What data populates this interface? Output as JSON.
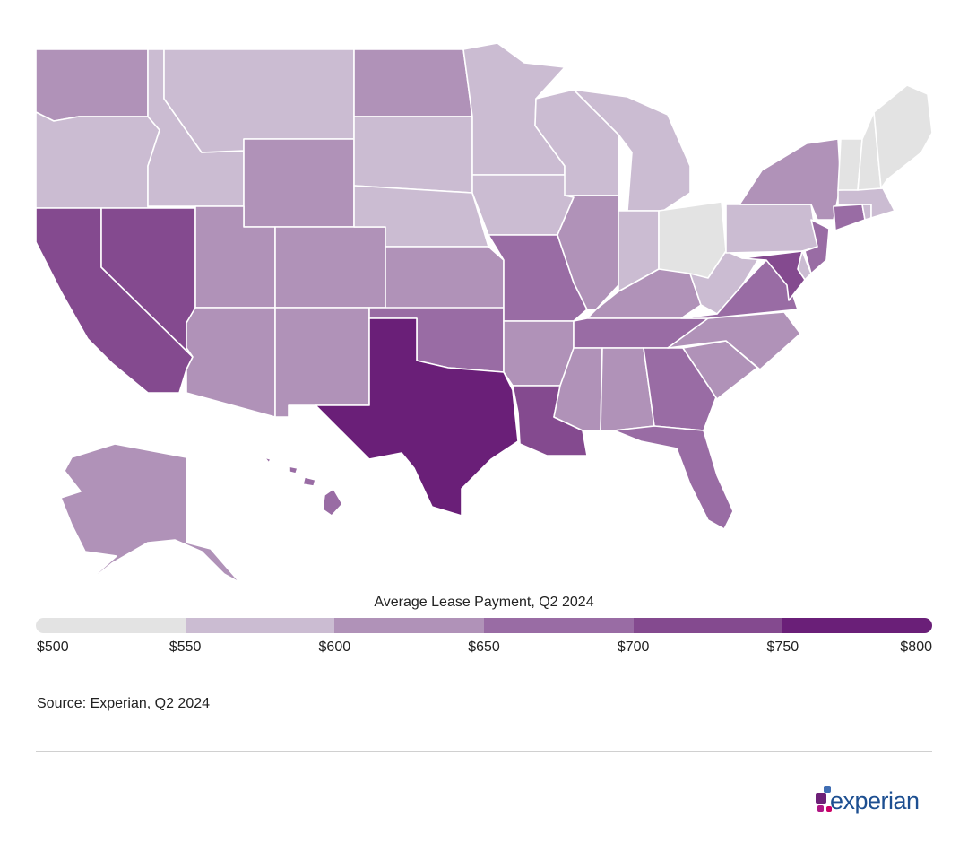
{
  "legend": {
    "title": "Average Lease Payment, Q2 2024",
    "ticks": [
      "$500",
      "$550",
      "$600",
      "$650",
      "$700",
      "$750",
      "$800"
    ],
    "bins": [
      {
        "min": 500,
        "max": 550,
        "color": "#e3e3e3"
      },
      {
        "min": 550,
        "max": 600,
        "color": "#cbbcd2"
      },
      {
        "min": 600,
        "max": 650,
        "color": "#b092b8"
      },
      {
        "min": 650,
        "max": 700,
        "color": "#996ca4"
      },
      {
        "min": 700,
        "max": 750,
        "color": "#844a8f"
      },
      {
        "min": 750,
        "max": 800,
        "color": "#6a1f78"
      }
    ]
  },
  "source": "Source: Experian, Q2 2024",
  "brand": {
    "name": "experian",
    "suffix": "."
  },
  "states": {
    "WA": 2,
    "OR": 1,
    "CA": 4,
    "NV": 4,
    "ID": 1,
    "MT": 1,
    "WY": 2,
    "UT": 2,
    "AZ": 2,
    "CO": 2,
    "NM": 2,
    "ND": 2,
    "SD": 1,
    "NE": 1,
    "KS": 2,
    "OK": 3,
    "TX": 5,
    "MN": 1,
    "IA": 1,
    "MO": 3,
    "AR": 2,
    "LA": 4,
    "WI": 1,
    "IL": 2,
    "MI": 1,
    "IN": 1,
    "OH": 0,
    "KY": 2,
    "TN": 3,
    "MS": 2,
    "AL": 2,
    "GA": 3,
    "FL": 3,
    "SC": 2,
    "NC": 2,
    "VA": 3,
    "WV": 1,
    "PA": 1,
    "NY": 2,
    "NJ": 3,
    "DE": 1,
    "MD": 4,
    "ME": 0,
    "VT": 0,
    "NH": 0,
    "MA": 1,
    "CT": 3,
    "RI": 1,
    "AK": 2,
    "HI": 3
  }
}
